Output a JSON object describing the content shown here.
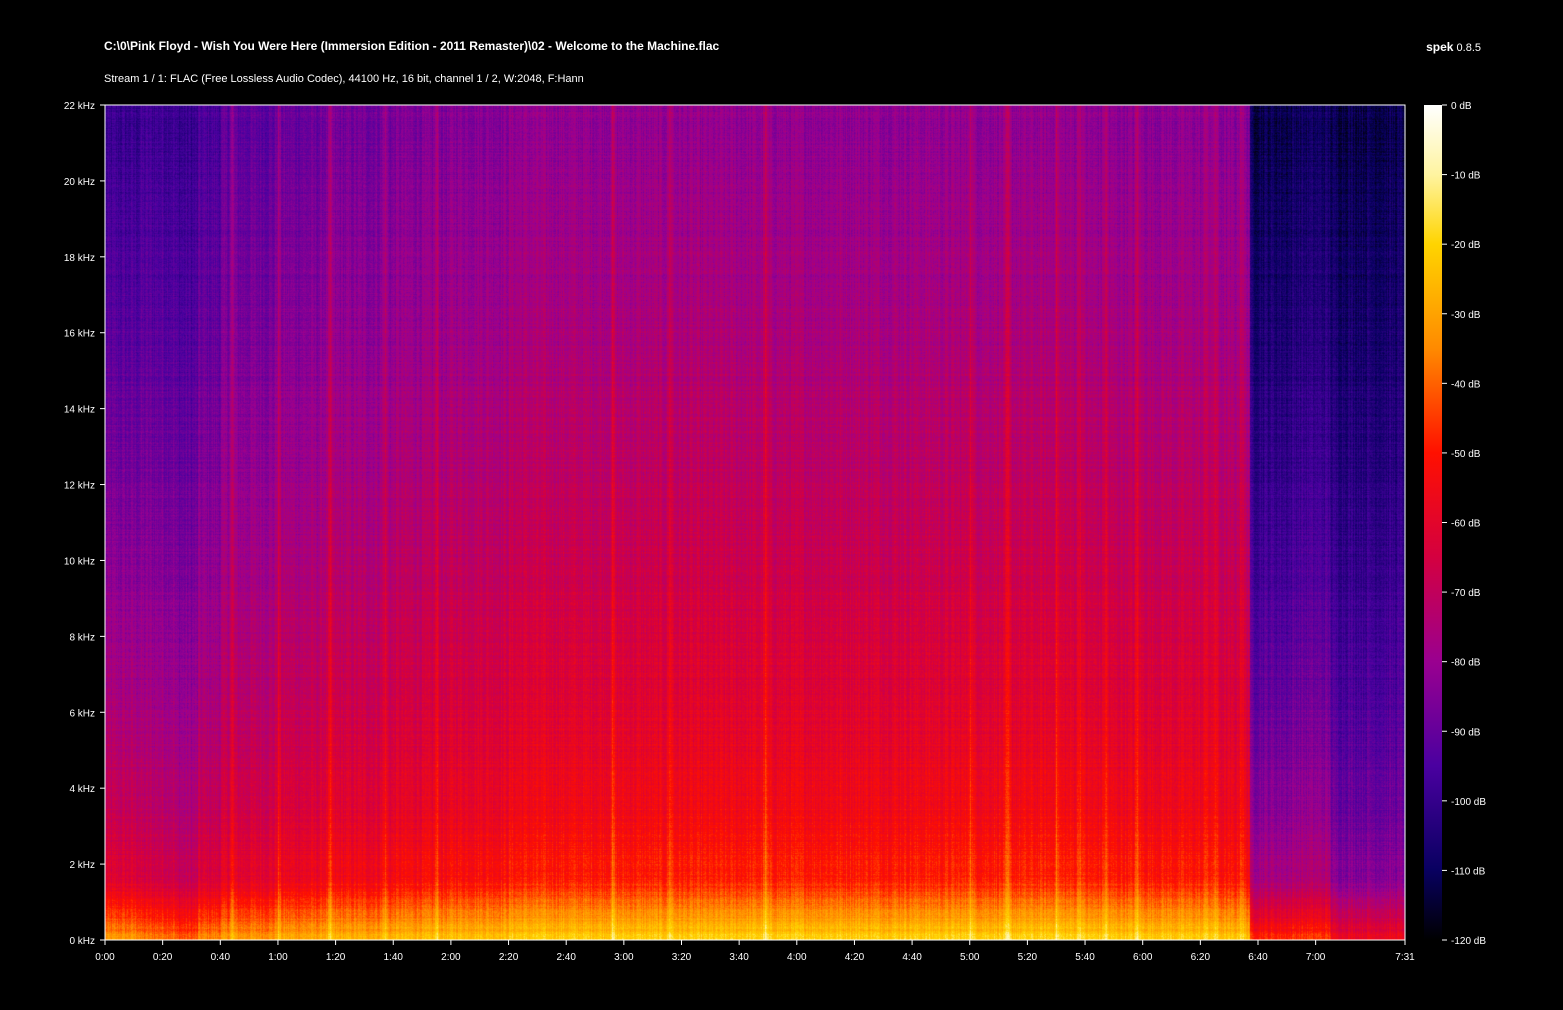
{
  "header": {
    "file_path": "C:\\0\\Pink Floyd - Wish You Were Here (Immersion Edition - 2011 Remaster)\\02 - Welcome to the Machine.flac",
    "stream_info": "Stream 1 / 1: FLAC (Free Lossless Audio Codec), 44100 Hz, 16 bit, channel 1 / 2, W:2048, F:Hann",
    "app_name": "spek",
    "app_version": "0.8.5"
  },
  "chart_data": {
    "type": "heatmap",
    "x_unit": "seconds",
    "xlim": [
      0,
      451
    ],
    "x_ticks": [
      {
        "value": 0,
        "label": "0:00"
      },
      {
        "value": 20,
        "label": "0:20"
      },
      {
        "value": 40,
        "label": "0:40"
      },
      {
        "value": 60,
        "label": "1:00"
      },
      {
        "value": 80,
        "label": "1:20"
      },
      {
        "value": 100,
        "label": "1:40"
      },
      {
        "value": 120,
        "label": "2:00"
      },
      {
        "value": 140,
        "label": "2:20"
      },
      {
        "value": 160,
        "label": "2:40"
      },
      {
        "value": 180,
        "label": "3:00"
      },
      {
        "value": 200,
        "label": "3:20"
      },
      {
        "value": 220,
        "label": "3:40"
      },
      {
        "value": 240,
        "label": "4:00"
      },
      {
        "value": 260,
        "label": "4:20"
      },
      {
        "value": 280,
        "label": "4:40"
      },
      {
        "value": 300,
        "label": "5:00"
      },
      {
        "value": 320,
        "label": "5:20"
      },
      {
        "value": 340,
        "label": "5:40"
      },
      {
        "value": 360,
        "label": "6:00"
      },
      {
        "value": 380,
        "label": "6:20"
      },
      {
        "value": 400,
        "label": "6:40"
      },
      {
        "value": 420,
        "label": "7:00"
      },
      {
        "value": 451,
        "label": "7:31"
      }
    ],
    "y_unit": "kHz",
    "ylim": [
      0,
      22
    ],
    "y_ticks": [
      {
        "value": 0,
        "label": "0 kHz"
      },
      {
        "value": 2,
        "label": "2 kHz"
      },
      {
        "value": 4,
        "label": "4 kHz"
      },
      {
        "value": 6,
        "label": "6 kHz"
      },
      {
        "value": 8,
        "label": "8 kHz"
      },
      {
        "value": 10,
        "label": "10 kHz"
      },
      {
        "value": 12,
        "label": "12 kHz"
      },
      {
        "value": 14,
        "label": "14 kHz"
      },
      {
        "value": 16,
        "label": "16 kHz"
      },
      {
        "value": 18,
        "label": "18 kHz"
      },
      {
        "value": 20,
        "label": "20 kHz"
      },
      {
        "value": 22,
        "label": "22 kHz"
      }
    ],
    "colorbar": {
      "range_db": [
        -120,
        0
      ],
      "ticks": [
        {
          "value": 0,
          "label": "0 dB"
        },
        {
          "value": -10,
          "label": "-10 dB"
        },
        {
          "value": -20,
          "label": "-20 dB"
        },
        {
          "value": -30,
          "label": "-30 dB"
        },
        {
          "value": -40,
          "label": "-40 dB"
        },
        {
          "value": -50,
          "label": "-50 dB"
        },
        {
          "value": -60,
          "label": "-60 dB"
        },
        {
          "value": -70,
          "label": "-70 dB"
        },
        {
          "value": -80,
          "label": "-80 dB"
        },
        {
          "value": -90,
          "label": "-90 dB"
        },
        {
          "value": -100,
          "label": "-100 dB"
        },
        {
          "value": -110,
          "label": "-110 dB"
        },
        {
          "value": -120,
          "label": "-120 dB"
        }
      ],
      "stops": [
        {
          "db": 0,
          "color": "#ffffff"
        },
        {
          "db": -10,
          "color": "#fff4a0"
        },
        {
          "db": -20,
          "color": "#ffd400"
        },
        {
          "db": -35,
          "color": "#ff8a00"
        },
        {
          "db": -50,
          "color": "#ff1000"
        },
        {
          "db": -65,
          "color": "#d40040"
        },
        {
          "db": -80,
          "color": "#9a0090"
        },
        {
          "db": -95,
          "color": "#4a00a0"
        },
        {
          "db": -110,
          "color": "#080060"
        },
        {
          "db": -120,
          "color": "#000000"
        }
      ]
    },
    "segments": [
      {
        "start": 0,
        "end": 12,
        "low_db": -45,
        "high_db": -100
      },
      {
        "start": 12,
        "end": 24,
        "low_db": -50,
        "high_db": -98
      },
      {
        "start": 24,
        "end": 32,
        "low_db": -55,
        "high_db": -100
      },
      {
        "start": 32,
        "end": 40,
        "low_db": -48,
        "high_db": -96
      },
      {
        "start": 40,
        "end": 60,
        "low_db": -45,
        "high_db": -92
      },
      {
        "start": 60,
        "end": 75,
        "low_db": -42,
        "high_db": -90
      },
      {
        "start": 75,
        "end": 100,
        "low_db": -40,
        "high_db": -88
      },
      {
        "start": 100,
        "end": 120,
        "low_db": -38,
        "high_db": -86
      },
      {
        "start": 120,
        "end": 140,
        "low_db": -36,
        "high_db": -84
      },
      {
        "start": 140,
        "end": 180,
        "low_db": -34,
        "high_db": -82
      },
      {
        "start": 180,
        "end": 220,
        "low_db": -34,
        "high_db": -82
      },
      {
        "start": 220,
        "end": 260,
        "low_db": -33,
        "high_db": -82
      },
      {
        "start": 260,
        "end": 300,
        "low_db": -33,
        "high_db": -82
      },
      {
        "start": 300,
        "end": 340,
        "low_db": -33,
        "high_db": -82
      },
      {
        "start": 340,
        "end": 380,
        "low_db": -34,
        "high_db": -83
      },
      {
        "start": 380,
        "end": 397,
        "low_db": -36,
        "high_db": -84
      },
      {
        "start": 397,
        "end": 412,
        "low_db": -60,
        "high_db": -112
      },
      {
        "start": 412,
        "end": 425,
        "low_db": -58,
        "high_db": -110
      },
      {
        "start": 425,
        "end": 451,
        "low_db": -70,
        "high_db": -112
      }
    ],
    "bright_columns_sec": [
      44,
      60,
      78,
      97,
      115,
      176,
      196,
      229,
      300,
      313,
      330,
      338,
      347,
      358,
      382,
      385,
      394
    ]
  }
}
